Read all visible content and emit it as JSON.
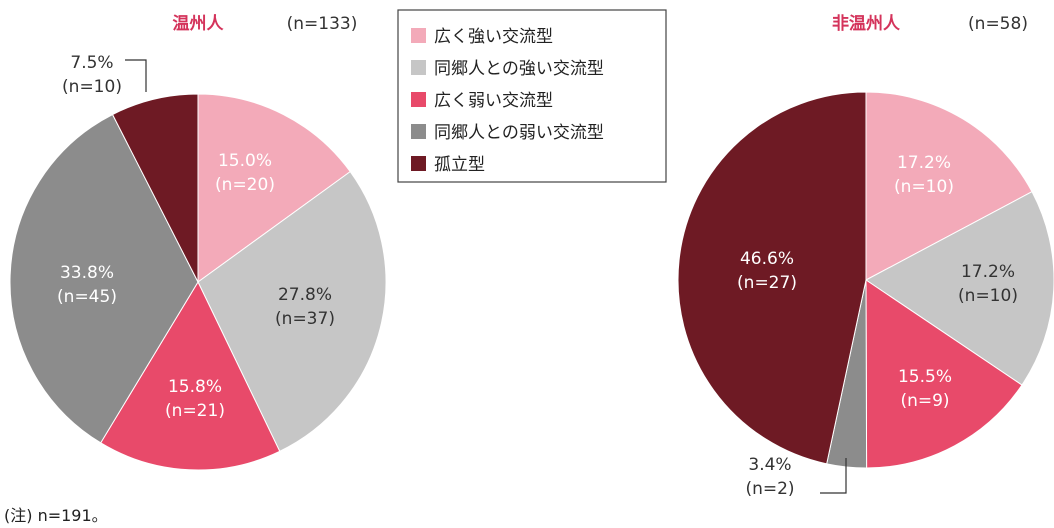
{
  "chart_data": [
    {
      "type": "pie",
      "title": "温州人",
      "n_label": "(n=133)",
      "slices": [
        {
          "category": "広く強い交流型",
          "value": 15.0,
          "pct_label": "15.0%",
          "n_label": "(n=20)"
        },
        {
          "category": "同郷人との強い交流型",
          "value": 27.8,
          "pct_label": "27.8%",
          "n_label": "(n=37)"
        },
        {
          "category": "広く弱い交流型",
          "value": 15.8,
          "pct_label": "15.8%",
          "n_label": "(n=21)"
        },
        {
          "category": "同郷人との弱い交流型",
          "value": 33.8,
          "pct_label": "33.8%",
          "n_label": "(n=45)"
        },
        {
          "category": "孤立型",
          "value": 7.5,
          "pct_label": "7.5%",
          "n_label": "(n=10)"
        }
      ]
    },
    {
      "type": "pie",
      "title": "非温州人",
      "n_label": "(n=58)",
      "slices": [
        {
          "category": "広く強い交流型",
          "value": 17.2,
          "pct_label": "17.2%",
          "n_label": "(n=10)"
        },
        {
          "category": "同郷人との強い交流型",
          "value": 17.2,
          "pct_label": "17.2%",
          "n_label": "(n=10)"
        },
        {
          "category": "広く弱い交流型",
          "value": 15.5,
          "pct_label": "15.5%",
          "n_label": "(n=9)"
        },
        {
          "category": "同郷人との弱い交流型",
          "value": 3.4,
          "pct_label": "3.4%",
          "n_label": "(n=2)"
        },
        {
          "category": "孤立型",
          "value": 46.6,
          "pct_label": "46.6%",
          "n_label": "(n=27)"
        }
      ]
    }
  ],
  "legend": {
    "placement": "top-center",
    "items": [
      {
        "label": "広く強い交流型",
        "color": "#f3aab9"
      },
      {
        "label": "同郷人との強い交流型",
        "color": "#c6c6c6"
      },
      {
        "label": "広く弱い交流型",
        "color": "#e84a6a"
      },
      {
        "label": "同郷人との弱い交流型",
        "color": "#8c8c8c"
      },
      {
        "label": "孤立型",
        "color": "#6e1a24"
      }
    ]
  },
  "colors": {
    "title": "#d4335b",
    "label_dark": "#333333",
    "label_light": "#ffffff",
    "slice_border": "#ffffff"
  },
  "note": "(注) n=191。"
}
